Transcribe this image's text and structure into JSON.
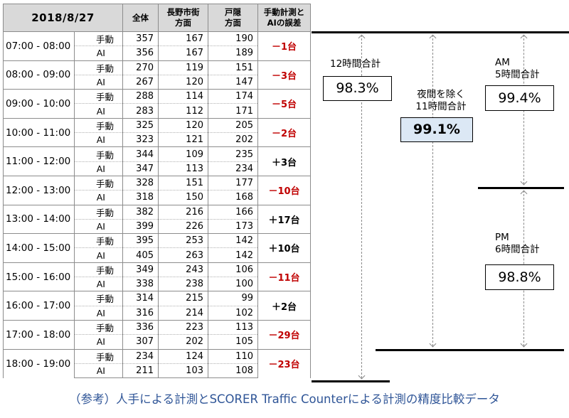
{
  "table": {
    "headers": {
      "date": "2018/8/27",
      "total": "全体",
      "nagano_line1": "長野市街",
      "nagano_line2": "方面",
      "togakushi_line1": "戸隠",
      "togakushi_line2": "方面",
      "diff_line1": "手動計測と",
      "diff_line2": "AIの誤差"
    },
    "manual_label": "手動",
    "ai_label": "AI",
    "rows": [
      {
        "time": "07:00 - 08:00",
        "manual": [
          357,
          167,
          190
        ],
        "ai": [
          356,
          167,
          189
        ],
        "diff": "－1台",
        "neg": true
      },
      {
        "time": "08:00 - 09:00",
        "manual": [
          270,
          119,
          151
        ],
        "ai": [
          267,
          120,
          147
        ],
        "diff": "－3台",
        "neg": true
      },
      {
        "time": "09:00 - 10:00",
        "manual": [
          288,
          114,
          174
        ],
        "ai": [
          283,
          112,
          171
        ],
        "diff": "－5台",
        "neg": true
      },
      {
        "time": "10:00 - 11:00",
        "manual": [
          325,
          120,
          205
        ],
        "ai": [
          323,
          121,
          202
        ],
        "diff": "－2台",
        "neg": true
      },
      {
        "time": "11:00 - 12:00",
        "manual": [
          344,
          109,
          235
        ],
        "ai": [
          347,
          113,
          234
        ],
        "diff": "＋3台",
        "neg": false
      },
      {
        "time": "12:00 - 13:00",
        "manual": [
          328,
          151,
          177
        ],
        "ai": [
          318,
          150,
          168
        ],
        "diff": "－10台",
        "neg": true
      },
      {
        "time": "13:00 - 14:00",
        "manual": [
          382,
          216,
          166
        ],
        "ai": [
          399,
          226,
          173
        ],
        "diff": "＋17台",
        "neg": false
      },
      {
        "time": "14:00 - 15:00",
        "manual": [
          395,
          253,
          142
        ],
        "ai": [
          405,
          263,
          142
        ],
        "diff": "＋10台",
        "neg": false
      },
      {
        "time": "15:00 - 16:00",
        "manual": [
          349,
          243,
          106
        ],
        "ai": [
          338,
          238,
          100
        ],
        "diff": "－11台",
        "neg": true
      },
      {
        "time": "16:00 - 17:00",
        "manual": [
          314,
          215,
          99
        ],
        "ai": [
          316,
          214,
          102
        ],
        "diff": "＋2台",
        "neg": false
      },
      {
        "time": "17:00 - 18:00",
        "manual": [
          336,
          223,
          113
        ],
        "ai": [
          307,
          202,
          105
        ],
        "diff": "－29台",
        "neg": true
      },
      {
        "time": "18:00 - 19:00",
        "manual": [
          234,
          124,
          110
        ],
        "ai": [
          211,
          103,
          108
        ],
        "diff": "－23台",
        "neg": true
      }
    ]
  },
  "summary": {
    "total12": {
      "label": "12時間合計",
      "value": "98.3%"
    },
    "total11": {
      "label_line1": "夜間を除く",
      "label_line2": "11時間合計",
      "value": "99.1%"
    },
    "am": {
      "label_line1": "AM",
      "label_line2": "5時間合計",
      "value": "99.4%"
    },
    "pm": {
      "label_line1": "PM",
      "label_line2": "6時間合計",
      "value": "98.8%"
    }
  },
  "caption": "（参考）人手による計測とSCORER Traffic Counterによる計測の精度比較データ",
  "colors": {
    "negative": "#c00000",
    "highlight_box": "#dce8f5",
    "caption": "#2f5597"
  }
}
